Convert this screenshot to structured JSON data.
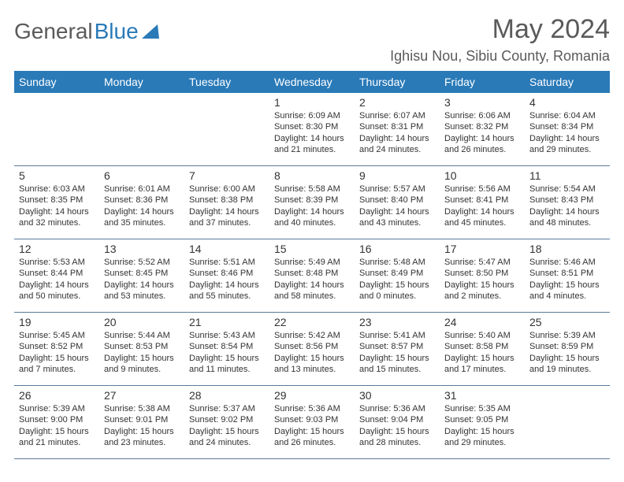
{
  "brand": {
    "part1": "General",
    "part2": "Blue"
  },
  "title": "May 2024",
  "location": "Ighisu Nou, Sibiu County, Romania",
  "headers": [
    "Sunday",
    "Monday",
    "Tuesday",
    "Wednesday",
    "Thursday",
    "Friday",
    "Saturday"
  ],
  "colors": {
    "header_bg": "#2a7ab8",
    "header_fg": "#ffffff",
    "text": "#333333",
    "title": "#5a5a5a",
    "border": "#5a7a9a"
  },
  "fonts": {
    "title_size": 34,
    "location_size": 18,
    "header_size": 14,
    "day_size": 14,
    "info_size": 11
  },
  "weeks": [
    [
      {
        "day": "",
        "sunrise": "",
        "sunset": "",
        "daylight": ""
      },
      {
        "day": "",
        "sunrise": "",
        "sunset": "",
        "daylight": ""
      },
      {
        "day": "",
        "sunrise": "",
        "sunset": "",
        "daylight": ""
      },
      {
        "day": "1",
        "sunrise": "Sunrise: 6:09 AM",
        "sunset": "Sunset: 8:30 PM",
        "daylight": "Daylight: 14 hours and 21 minutes."
      },
      {
        "day": "2",
        "sunrise": "Sunrise: 6:07 AM",
        "sunset": "Sunset: 8:31 PM",
        "daylight": "Daylight: 14 hours and 24 minutes."
      },
      {
        "day": "3",
        "sunrise": "Sunrise: 6:06 AM",
        "sunset": "Sunset: 8:32 PM",
        "daylight": "Daylight: 14 hours and 26 minutes."
      },
      {
        "day": "4",
        "sunrise": "Sunrise: 6:04 AM",
        "sunset": "Sunset: 8:34 PM",
        "daylight": "Daylight: 14 hours and 29 minutes."
      }
    ],
    [
      {
        "day": "5",
        "sunrise": "Sunrise: 6:03 AM",
        "sunset": "Sunset: 8:35 PM",
        "daylight": "Daylight: 14 hours and 32 minutes."
      },
      {
        "day": "6",
        "sunrise": "Sunrise: 6:01 AM",
        "sunset": "Sunset: 8:36 PM",
        "daylight": "Daylight: 14 hours and 35 minutes."
      },
      {
        "day": "7",
        "sunrise": "Sunrise: 6:00 AM",
        "sunset": "Sunset: 8:38 PM",
        "daylight": "Daylight: 14 hours and 37 minutes."
      },
      {
        "day": "8",
        "sunrise": "Sunrise: 5:58 AM",
        "sunset": "Sunset: 8:39 PM",
        "daylight": "Daylight: 14 hours and 40 minutes."
      },
      {
        "day": "9",
        "sunrise": "Sunrise: 5:57 AM",
        "sunset": "Sunset: 8:40 PM",
        "daylight": "Daylight: 14 hours and 43 minutes."
      },
      {
        "day": "10",
        "sunrise": "Sunrise: 5:56 AM",
        "sunset": "Sunset: 8:41 PM",
        "daylight": "Daylight: 14 hours and 45 minutes."
      },
      {
        "day": "11",
        "sunrise": "Sunrise: 5:54 AM",
        "sunset": "Sunset: 8:43 PM",
        "daylight": "Daylight: 14 hours and 48 minutes."
      }
    ],
    [
      {
        "day": "12",
        "sunrise": "Sunrise: 5:53 AM",
        "sunset": "Sunset: 8:44 PM",
        "daylight": "Daylight: 14 hours and 50 minutes."
      },
      {
        "day": "13",
        "sunrise": "Sunrise: 5:52 AM",
        "sunset": "Sunset: 8:45 PM",
        "daylight": "Daylight: 14 hours and 53 minutes."
      },
      {
        "day": "14",
        "sunrise": "Sunrise: 5:51 AM",
        "sunset": "Sunset: 8:46 PM",
        "daylight": "Daylight: 14 hours and 55 minutes."
      },
      {
        "day": "15",
        "sunrise": "Sunrise: 5:49 AM",
        "sunset": "Sunset: 8:48 PM",
        "daylight": "Daylight: 14 hours and 58 minutes."
      },
      {
        "day": "16",
        "sunrise": "Sunrise: 5:48 AM",
        "sunset": "Sunset: 8:49 PM",
        "daylight": "Daylight: 15 hours and 0 minutes."
      },
      {
        "day": "17",
        "sunrise": "Sunrise: 5:47 AM",
        "sunset": "Sunset: 8:50 PM",
        "daylight": "Daylight: 15 hours and 2 minutes."
      },
      {
        "day": "18",
        "sunrise": "Sunrise: 5:46 AM",
        "sunset": "Sunset: 8:51 PM",
        "daylight": "Daylight: 15 hours and 4 minutes."
      }
    ],
    [
      {
        "day": "19",
        "sunrise": "Sunrise: 5:45 AM",
        "sunset": "Sunset: 8:52 PM",
        "daylight": "Daylight: 15 hours and 7 minutes."
      },
      {
        "day": "20",
        "sunrise": "Sunrise: 5:44 AM",
        "sunset": "Sunset: 8:53 PM",
        "daylight": "Daylight: 15 hours and 9 minutes."
      },
      {
        "day": "21",
        "sunrise": "Sunrise: 5:43 AM",
        "sunset": "Sunset: 8:54 PM",
        "daylight": "Daylight: 15 hours and 11 minutes."
      },
      {
        "day": "22",
        "sunrise": "Sunrise: 5:42 AM",
        "sunset": "Sunset: 8:56 PM",
        "daylight": "Daylight: 15 hours and 13 minutes."
      },
      {
        "day": "23",
        "sunrise": "Sunrise: 5:41 AM",
        "sunset": "Sunset: 8:57 PM",
        "daylight": "Daylight: 15 hours and 15 minutes."
      },
      {
        "day": "24",
        "sunrise": "Sunrise: 5:40 AM",
        "sunset": "Sunset: 8:58 PM",
        "daylight": "Daylight: 15 hours and 17 minutes."
      },
      {
        "day": "25",
        "sunrise": "Sunrise: 5:39 AM",
        "sunset": "Sunset: 8:59 PM",
        "daylight": "Daylight: 15 hours and 19 minutes."
      }
    ],
    [
      {
        "day": "26",
        "sunrise": "Sunrise: 5:39 AM",
        "sunset": "Sunset: 9:00 PM",
        "daylight": "Daylight: 15 hours and 21 minutes."
      },
      {
        "day": "27",
        "sunrise": "Sunrise: 5:38 AM",
        "sunset": "Sunset: 9:01 PM",
        "daylight": "Daylight: 15 hours and 23 minutes."
      },
      {
        "day": "28",
        "sunrise": "Sunrise: 5:37 AM",
        "sunset": "Sunset: 9:02 PM",
        "daylight": "Daylight: 15 hours and 24 minutes."
      },
      {
        "day": "29",
        "sunrise": "Sunrise: 5:36 AM",
        "sunset": "Sunset: 9:03 PM",
        "daylight": "Daylight: 15 hours and 26 minutes."
      },
      {
        "day": "30",
        "sunrise": "Sunrise: 5:36 AM",
        "sunset": "Sunset: 9:04 PM",
        "daylight": "Daylight: 15 hours and 28 minutes."
      },
      {
        "day": "31",
        "sunrise": "Sunrise: 5:35 AM",
        "sunset": "Sunset: 9:05 PM",
        "daylight": "Daylight: 15 hours and 29 minutes."
      },
      {
        "day": "",
        "sunrise": "",
        "sunset": "",
        "daylight": ""
      }
    ]
  ]
}
